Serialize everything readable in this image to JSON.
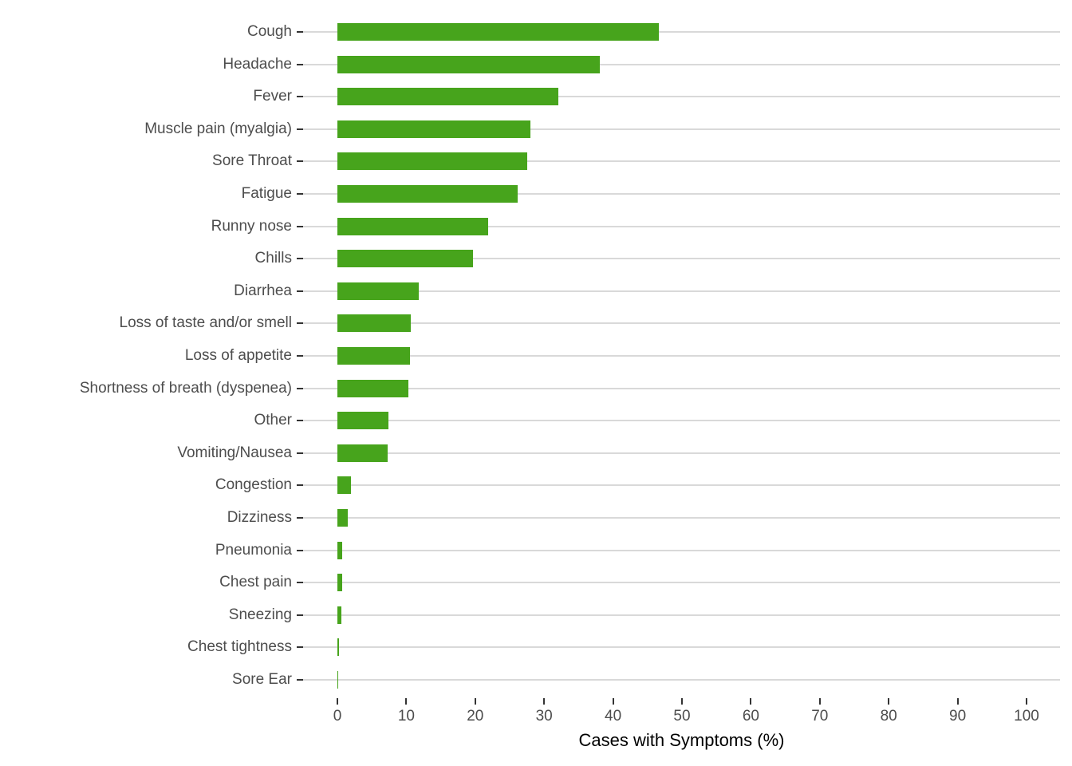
{
  "chart_data": {
    "type": "bar",
    "orientation": "horizontal",
    "title": "",
    "xlabel": "Cases with Symptoms (%)",
    "ylabel": "",
    "categories": [
      "Cough",
      "Headache",
      "Fever",
      "Muscle pain (myalgia)",
      "Sore Throat",
      "Fatigue",
      "Runny nose",
      "Chills",
      "Diarrhea",
      "Loss of taste and/or smell",
      "Loss of appetite",
      "Shortness of breath (dyspenea)",
      "Other",
      "Vomiting/Nausea",
      "Congestion",
      "Dizziness",
      "Pneumonia",
      "Chest pain",
      "Sneezing",
      "Chest tightness",
      "Sore Ear"
    ],
    "values": [
      46.6,
      38.1,
      32.1,
      28.0,
      27.5,
      26.2,
      21.9,
      19.7,
      11.8,
      10.6,
      10.5,
      10.3,
      7.4,
      7.3,
      2.0,
      1.5,
      0.7,
      0.65,
      0.6,
      0.2,
      0.1
    ],
    "xticks": [
      0,
      10,
      20,
      30,
      40,
      50,
      60,
      70,
      80,
      90,
      100
    ],
    "xtick_labels": [
      "0",
      "10",
      "20",
      "30",
      "40",
      "50",
      "60",
      "70",
      "80",
      "90",
      "100"
    ],
    "xlim": [
      -5,
      105
    ],
    "grid": "horizontal-major-only",
    "legend": "none"
  },
  "colors": {
    "bar": "#47A41C",
    "grid": "#D9D9D9",
    "tick": "#333333",
    "axis_text": "#4D4D4D",
    "axis_title_text": "#000000",
    "background": "#FFFFFF"
  }
}
